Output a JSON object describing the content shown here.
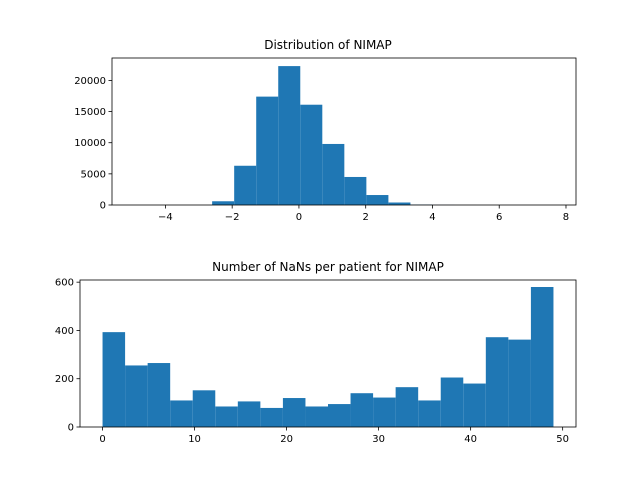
{
  "chart_data": [
    {
      "type": "bar",
      "title": "Distribution of NIMAP",
      "xlabel": "",
      "ylabel": "",
      "xlim": [
        -5.6,
        8.3
      ],
      "ylim": [
        0,
        23600
      ],
      "bar_color": "#1f77b4",
      "xticks": [
        -4,
        -2,
        0,
        2,
        4,
        6,
        8
      ],
      "yticks": [
        0,
        5000,
        10000,
        15000,
        20000
      ],
      "xtick_labels": [
        "−4",
        "−2",
        "0",
        "2",
        "4",
        "6",
        "8"
      ],
      "ytick_labels": [
        "0",
        "5000",
        "10000",
        "15000",
        "20000"
      ],
      "bins": [
        {
          "x0": -2.6,
          "x1": -1.94,
          "value": 600
        },
        {
          "x0": -1.94,
          "x1": -1.28,
          "value": 6300
        },
        {
          "x0": -1.28,
          "x1": -0.62,
          "value": 17400
        },
        {
          "x0": -0.62,
          "x1": 0.04,
          "value": 22300
        },
        {
          "x0": 0.04,
          "x1": 0.7,
          "value": 16100
        },
        {
          "x0": 0.7,
          "x1": 1.36,
          "value": 9800
        },
        {
          "x0": 1.36,
          "x1": 2.02,
          "value": 4500
        },
        {
          "x0": 2.02,
          "x1": 2.68,
          "value": 1600
        },
        {
          "x0": 2.68,
          "x1": 3.34,
          "value": 400
        },
        {
          "x0": 3.34,
          "x1": 4.0,
          "value": 60
        },
        {
          "x0": 4.0,
          "x1": 4.66,
          "value": 15
        },
        {
          "x0": 4.66,
          "x1": 5.32,
          "value": 5
        }
      ]
    },
    {
      "type": "bar",
      "title": "Number of NaNs per patient for NIMAP",
      "xlabel": "",
      "ylabel": "",
      "xlim": [
        -2.45,
        51.45
      ],
      "ylim": [
        0,
        609
      ],
      "bar_color": "#1f77b4",
      "xticks": [
        0,
        10,
        20,
        30,
        40,
        50
      ],
      "yticks": [
        0,
        200,
        400,
        600
      ],
      "xtick_labels": [
        "0",
        "10",
        "20",
        "30",
        "40",
        "50"
      ],
      "ytick_labels": [
        "0",
        "200",
        "400",
        "600"
      ],
      "bins": [
        {
          "x0": 0.0,
          "x1": 2.45,
          "value": 393
        },
        {
          "x0": 2.45,
          "x1": 4.9,
          "value": 255
        },
        {
          "x0": 4.9,
          "x1": 7.35,
          "value": 265
        },
        {
          "x0": 7.35,
          "x1": 9.8,
          "value": 110
        },
        {
          "x0": 9.8,
          "x1": 12.25,
          "value": 152
        },
        {
          "x0": 12.25,
          "x1": 14.7,
          "value": 85
        },
        {
          "x0": 14.7,
          "x1": 17.15,
          "value": 106
        },
        {
          "x0": 17.15,
          "x1": 19.6,
          "value": 79
        },
        {
          "x0": 19.6,
          "x1": 22.05,
          "value": 120
        },
        {
          "x0": 22.05,
          "x1": 24.5,
          "value": 85
        },
        {
          "x0": 24.5,
          "x1": 26.95,
          "value": 95
        },
        {
          "x0": 26.95,
          "x1": 29.4,
          "value": 140
        },
        {
          "x0": 29.4,
          "x1": 31.85,
          "value": 122
        },
        {
          "x0": 31.85,
          "x1": 34.3,
          "value": 165
        },
        {
          "x0": 34.3,
          "x1": 36.75,
          "value": 110
        },
        {
          "x0": 36.75,
          "x1": 39.2,
          "value": 205
        },
        {
          "x0": 39.2,
          "x1": 41.65,
          "value": 180
        },
        {
          "x0": 41.65,
          "x1": 44.1,
          "value": 372
        },
        {
          "x0": 44.1,
          "x1": 46.55,
          "value": 362
        },
        {
          "x0": 46.55,
          "x1": 49.0,
          "value": 580
        }
      ]
    }
  ]
}
